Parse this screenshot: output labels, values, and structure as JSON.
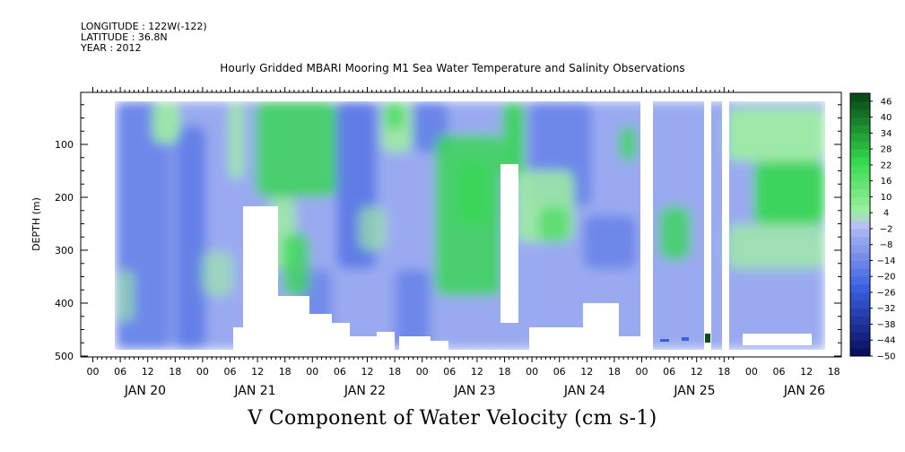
{
  "meta": {
    "longitude": "LONGITUDE : 122W(-122)",
    "latitude": "LATITUDE : 36.8N",
    "year": "YEAR : 2012"
  },
  "chart_data": {
    "type": "heatmap",
    "title": "Hourly Gridded MBARI Mooring M1 Sea Water Temperature and Salinity Observations",
    "xlabel": "V Component of Water Velocity (cm s-1)",
    "ylabel": "DEPTH (m)",
    "y_ticks": [
      100,
      200,
      300,
      400,
      500
    ],
    "ylim": [
      500,
      15
    ],
    "y_inverted": true,
    "x_hour_ticks": [
      "00",
      "06",
      "12",
      "18",
      "00",
      "06",
      "12",
      "18",
      "00",
      "06",
      "12",
      "18",
      "00",
      "06",
      "12",
      "18",
      "00",
      "06",
      "12",
      "18",
      "00",
      "06",
      "12",
      "18",
      "00",
      "06",
      "12",
      "18"
    ],
    "x_day_labels": [
      "JAN 20",
      "JAN 21",
      "JAN 22",
      "JAN 23",
      "JAN 24",
      "JAN 25",
      "JAN 26"
    ],
    "colorbar": {
      "labels": [
        "-50",
        "-44",
        "-38",
        "-32",
        "-26",
        "-20",
        "-14",
        "-8",
        "-2",
        "4",
        "10",
        "16",
        "22",
        "28",
        "34",
        "40",
        "46"
      ],
      "levels": [
        -50,
        -47,
        -44,
        -41,
        -38,
        -35,
        -32,
        -29,
        -26,
        -23,
        -20,
        -17,
        -14,
        -11,
        -8,
        -5,
        -2,
        1,
        4,
        7,
        10,
        13,
        16,
        19,
        22,
        25,
        28,
        31,
        34,
        37,
        40,
        43,
        46,
        49
      ]
    },
    "colors": {
      "strong_negative": "#0a1060",
      "negative": "#3a5fe0",
      "weak_negative": "#9aaaf0",
      "near_zero": "#b8c0f4",
      "weak_positive": "#9ff0a0",
      "positive": "#33d84d",
      "strong_positive": "#0a4d18"
    }
  }
}
